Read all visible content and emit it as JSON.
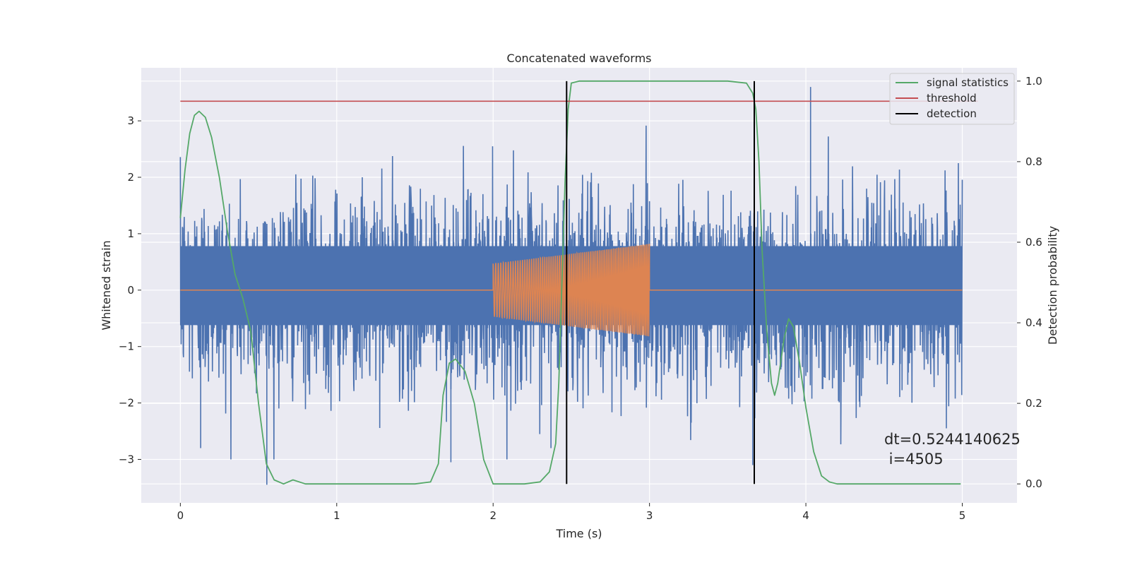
{
  "chart_data": {
    "type": "line",
    "title": "Concatenated waveforms",
    "xlabel": "Time (s)",
    "ylabel": "Whitened strain",
    "ylabel_right": "Detection probability",
    "xlim": [
      -0.25,
      5.35
    ],
    "ylim": [
      -3.77,
      3.94
    ],
    "ylim_right": [
      -0.047,
      1.033
    ],
    "xticks": [
      0,
      1,
      2,
      3,
      4,
      5
    ],
    "yticks": [
      -3,
      -2,
      -1,
      0,
      1,
      2,
      3
    ],
    "yticks_right": [
      0.0,
      0.2,
      0.4,
      0.6,
      0.8,
      1.0
    ],
    "xtick_labels": [
      "0",
      "1",
      "2",
      "3",
      "4",
      "5"
    ],
    "ytick_labels": [
      "−3",
      "−2",
      "−1",
      "0",
      "1",
      "2",
      "3"
    ],
    "ytick_right_labels": [
      "0.0",
      "0.2",
      "0.4",
      "0.6",
      "0.8",
      "1.0"
    ],
    "grid": true,
    "legend_position": "top-right",
    "colors": {
      "background": "#eaeaf2",
      "grid": "#ffffff",
      "noise": "#4c72b0",
      "injection": "#dd8452",
      "signal": "#55a868",
      "threshold": "#c44e52",
      "detection": "#000000"
    },
    "series": [
      {
        "name": "noise",
        "axis": "left",
        "x_range": [
          0,
          5
        ],
        "envelope_upper": 2.3,
        "envelope_lower": -2.0,
        "min": -3.45,
        "max": 3.6
      },
      {
        "name": "injected chirp",
        "axis": "left",
        "x_range": [
          2,
          3
        ],
        "amplitude_start": 0.47,
        "amplitude_end": 0.82,
        "baseline": 0
      },
      {
        "name": "signal statistics",
        "axis": "right",
        "x": [
          0,
          0.03,
          0.06,
          0.09,
          0.12,
          0.16,
          0.2,
          0.25,
          0.3,
          0.35,
          0.4,
          0.45,
          0.5,
          0.55,
          0.6,
          0.66,
          0.72,
          0.8,
          1.0,
          1.5,
          1.6,
          1.65,
          1.68,
          1.72,
          1.76,
          1.82,
          1.88,
          1.94,
          2.0,
          2.2,
          2.3,
          2.36,
          2.4,
          2.42,
          2.44,
          2.46,
          2.48,
          2.5,
          2.55,
          2.6,
          3.5,
          3.62,
          3.66,
          3.68,
          3.7,
          3.72,
          3.75,
          3.78,
          3.8,
          3.82,
          3.86,
          3.89,
          3.92,
          3.96,
          4.0,
          4.05,
          4.1,
          4.15,
          4.2,
          4.5,
          4.99
        ],
        "y": [
          0.66,
          0.78,
          0.87,
          0.915,
          0.925,
          0.91,
          0.86,
          0.76,
          0.63,
          0.52,
          0.46,
          0.38,
          0.2,
          0.05,
          0.01,
          0.0,
          0.01,
          0.0,
          0.0,
          0.0,
          0.005,
          0.05,
          0.22,
          0.3,
          0.31,
          0.28,
          0.2,
          0.06,
          0.0,
          0.0,
          0.005,
          0.03,
          0.1,
          0.25,
          0.5,
          0.75,
          0.93,
          0.995,
          1.0,
          1.0,
          1.0,
          0.995,
          0.97,
          0.93,
          0.8,
          0.58,
          0.38,
          0.25,
          0.22,
          0.25,
          0.36,
          0.41,
          0.39,
          0.3,
          0.19,
          0.08,
          0.02,
          0.005,
          0.0,
          0.0,
          0.0
        ]
      },
      {
        "name": "threshold",
        "axis": "right",
        "x": [
          0,
          5.1
        ],
        "y": [
          0.95,
          0.95
        ]
      }
    ],
    "detections": {
      "name": "detection",
      "x": [
        2.47,
        3.67
      ],
      "y_range": [
        0.0,
        1.0
      ]
    },
    "legend": [
      {
        "label": "signal statistics",
        "color": "#55a868"
      },
      {
        "label": "threshold",
        "color": "#c44e52"
      },
      {
        "label": "detection",
        "color": "#000000"
      }
    ],
    "annotation": {
      "line1": "dt=0.5244140625",
      "line2": " i=4505"
    }
  }
}
